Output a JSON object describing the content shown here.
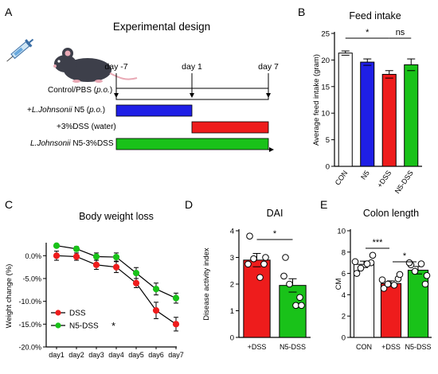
{
  "panels": [
    {
      "letter": "A"
    },
    {
      "letter": "B"
    },
    {
      "letter": "C"
    },
    {
      "letter": "D"
    },
    {
      "letter": "E"
    }
  ],
  "design": {
    "title": "Experimental design",
    "days": [
      "day -7",
      "day 1",
      "day 7"
    ],
    "control_label": "Control/PBS (",
    "control_po": "p.o.",
    "control_tail": ")",
    "rows": [
      {
        "prefix": "+",
        "italic": "L.Johnsonii",
        "suffix": " N5 (",
        "po": "p.o.",
        "tail": ")",
        "color": "#1f1fe6"
      },
      {
        "prefix": "+3%DSS (water)",
        "italic": "",
        "suffix": "",
        "po": "",
        "tail": "",
        "color": "#ee1c1c"
      },
      {
        "prefix": "",
        "italic": "L.Johnsonii",
        "suffix": " N5-3%DSS",
        "po": "",
        "tail": "",
        "color": "#19c219"
      }
    ]
  },
  "colors": {
    "con": "#ffffff",
    "n5": "#1f1fe6",
    "dss": "#ee1c1c",
    "n5dss": "#19c219"
  },
  "chart_data": [
    {
      "panel": "B",
      "type": "bar",
      "title": "Feed intake",
      "xlabel": "",
      "ylabel": "Average feed intake (gram)",
      "categories": [
        "CON",
        "N5",
        "+DSS",
        "N5-DSS"
      ],
      "values": [
        21.3,
        19.6,
        17.3,
        19.1
      ],
      "errors": [
        0.4,
        0.6,
        0.7,
        1.1
      ],
      "ylim": [
        0,
        25
      ],
      "yticks": [
        "0",
        "5",
        "10",
        "15",
        "20",
        "25"
      ],
      "significance": [
        {
          "from": 0,
          "to": 2,
          "label": "*"
        },
        {
          "from": 2,
          "to": 3,
          "label": "ns"
        }
      ]
    },
    {
      "panel": "C",
      "type": "line",
      "title": "Body weight loss",
      "xlabel": "",
      "ylabel": "Weight change (%)",
      "categories": [
        "day1",
        "day2",
        "day3",
        "day4",
        "day5",
        "day6",
        "day7"
      ],
      "ylim": [
        -20,
        2.5
      ],
      "yticks": [
        "-20.0%",
        "-15.0%",
        "-10.0%",
        "-5.0%",
        "0.0%"
      ],
      "legend_position": "bottom-left",
      "legend_star": "*",
      "series": [
        {
          "name": "DSS",
          "values": [
            0.0,
            -0.2,
            -2.0,
            -2.5,
            -6.0,
            -12.0,
            -15.0
          ],
          "errors": [
            1.0,
            0.8,
            1.0,
            1.2,
            1.0,
            1.8,
            1.5
          ]
        },
        {
          "name": "N5-DSS",
          "values": [
            2.2,
            1.5,
            -0.2,
            -0.3,
            -3.8,
            -7.3,
            -9.3
          ],
          "errors": [
            0.4,
            0.5,
            0.8,
            0.9,
            1.2,
            1.3,
            1.1
          ]
        }
      ]
    },
    {
      "panel": "D",
      "type": "bar",
      "title": "DAI",
      "xlabel": "",
      "ylabel": "Disease activity index",
      "categories": [
        "+DSS",
        "N5-DSS"
      ],
      "values": [
        2.9,
        1.95
      ],
      "errors": [
        0.25,
        0.25
      ],
      "ylim": [
        0,
        4
      ],
      "yticks": [
        "0",
        "1",
        "2",
        "3",
        "4"
      ],
      "points": [
        [
          3.8,
          2.75,
          2.95,
          2.25,
          2.75,
          3.0
        ],
        [
          3.0,
          1.5,
          2.0,
          1.2,
          2.3,
          1.2
        ]
      ],
      "significance": [
        {
          "from": 0,
          "to": 1,
          "label": "*"
        }
      ]
    },
    {
      "panel": "E",
      "type": "bar",
      "title": "Colon length",
      "xlabel": "",
      "ylabel": "CM",
      "categories": [
        "CON",
        "+DSS",
        "N5-DSS"
      ],
      "values": [
        6.85,
        5.05,
        6.3
      ],
      "errors": [
        0.3,
        0.25,
        0.35
      ],
      "ylim": [
        0,
        10
      ],
      "yticks": [
        "0",
        "2",
        "4",
        "6",
        "8",
        "10"
      ],
      "points": [
        [
          6.0,
          7.0,
          6.5,
          6.9,
          7.1,
          7.7
        ],
        [
          4.6,
          5.5,
          5.0,
          4.9,
          5.4,
          5.9
        ],
        [
          6.8,
          5.0,
          6.2,
          6.9,
          7.0,
          5.8
        ]
      ],
      "significance": [
        {
          "from": 0,
          "to": 1,
          "label": "***"
        },
        {
          "from": 1,
          "to": 2,
          "label": "*"
        }
      ]
    }
  ]
}
